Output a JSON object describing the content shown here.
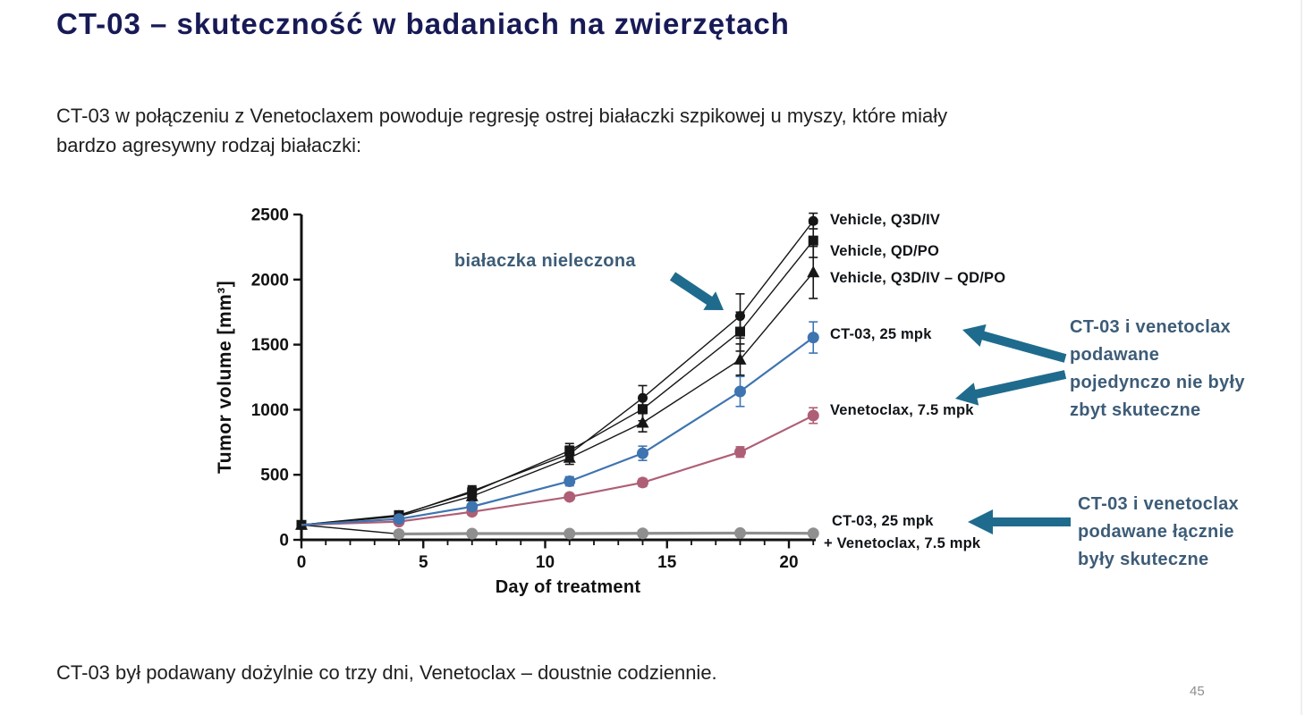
{
  "slide": {
    "title": "CT-03 – skuteczność w badaniach na zwierzętach",
    "intro_lines": [
      "CT-03 w połączeniu z Venetoclaxem powoduje regresję ostrej białaczki szpikowej u myszy, które miały",
      "bardzo agresywny rodzaj białaczki:"
    ],
    "footer_text": "CT-03 był podawany dożylnie co trzy dni, Venetoclax – doustnie codziennie.",
    "page_number": "45"
  },
  "annotations": {
    "untreated": "białaczka nieleczona",
    "mono_lines": [
      "CT-03 i venetoclax",
      "podawane",
      "pojedynczo nie były",
      "zbyt skuteczne"
    ],
    "combo_lines": [
      "CT-03 i venetoclax",
      "podawane łącznie",
      "były skuteczne"
    ]
  },
  "colors": {
    "title_navy": "#171a55",
    "accent_teal": "#1f6b8d",
    "annotation_text": "#3d5c77",
    "axis_black": "#111111",
    "series_black": "#161616",
    "series_blue": "#3e74b0",
    "series_pink": "#ae5f75",
    "series_gray": "#8f8f8f"
  },
  "chart_data": {
    "type": "line",
    "title": "",
    "xlabel": "Day of treatment",
    "ylabel": "Tumor volume [mm³]",
    "xlim": [
      0,
      21.1
    ],
    "ylim": [
      0,
      2500
    ],
    "xticks": [
      0,
      5,
      10,
      15,
      20
    ],
    "yticks": [
      0,
      500,
      1000,
      1500,
      2000,
      2500
    ],
    "x_minor_tick_step": 1,
    "grid": false,
    "legend_position": "right-of-final-points",
    "x": [
      0,
      4,
      7,
      11,
      14,
      18,
      21
    ],
    "series": [
      {
        "name": "Vehicle, Q3D/IV",
        "marker": "circle",
        "color": "#161616",
        "values": [
          115,
          185,
          375,
          660,
          1090,
          1720,
          2450
        ],
        "errors": [
          15,
          20,
          40,
          60,
          95,
          170,
          60
        ]
      },
      {
        "name": "Vehicle, QD/PO",
        "marker": "square",
        "color": "#161616",
        "values": [
          115,
          190,
          365,
          685,
          1005,
          1600,
          2300
        ],
        "errors": [
          15,
          20,
          40,
          55,
          90,
          150,
          130
        ]
      },
      {
        "name": "Vehicle, Q3D/IV – QD/PO",
        "marker": "triangle",
        "color": "#161616",
        "values": [
          115,
          180,
          335,
          630,
          900,
          1385,
          2055
        ],
        "errors": [
          15,
          20,
          35,
          50,
          70,
          120,
          200
        ]
      },
      {
        "name": "CT-03, 25 mpk",
        "marker": "circle",
        "color": "#3e74b0",
        "values": [
          115,
          160,
          255,
          450,
          665,
          1140,
          1555
        ],
        "errors": [
          0,
          12,
          20,
          35,
          55,
          115,
          120
        ]
      },
      {
        "name": "Venetoclax, 7.5 mpk",
        "marker": "circle",
        "color": "#ae5f75",
        "values": [
          115,
          140,
          215,
          330,
          440,
          675,
          955
        ],
        "errors": [
          0,
          10,
          15,
          20,
          30,
          40,
          60
        ]
      },
      {
        "name": "CT-03, 25 mpk + Venetoclax, 7.5 mpk",
        "name_lines": [
          "CT-03, 25 mpk",
          "+ Venetoclax, 7.5 mpk"
        ],
        "marker": "circle",
        "color": "#8f8f8f",
        "values": [
          115,
          45,
          48,
          48,
          50,
          52,
          50
        ],
        "errors": [
          0,
          0,
          0,
          0,
          0,
          0,
          0
        ]
      }
    ]
  }
}
